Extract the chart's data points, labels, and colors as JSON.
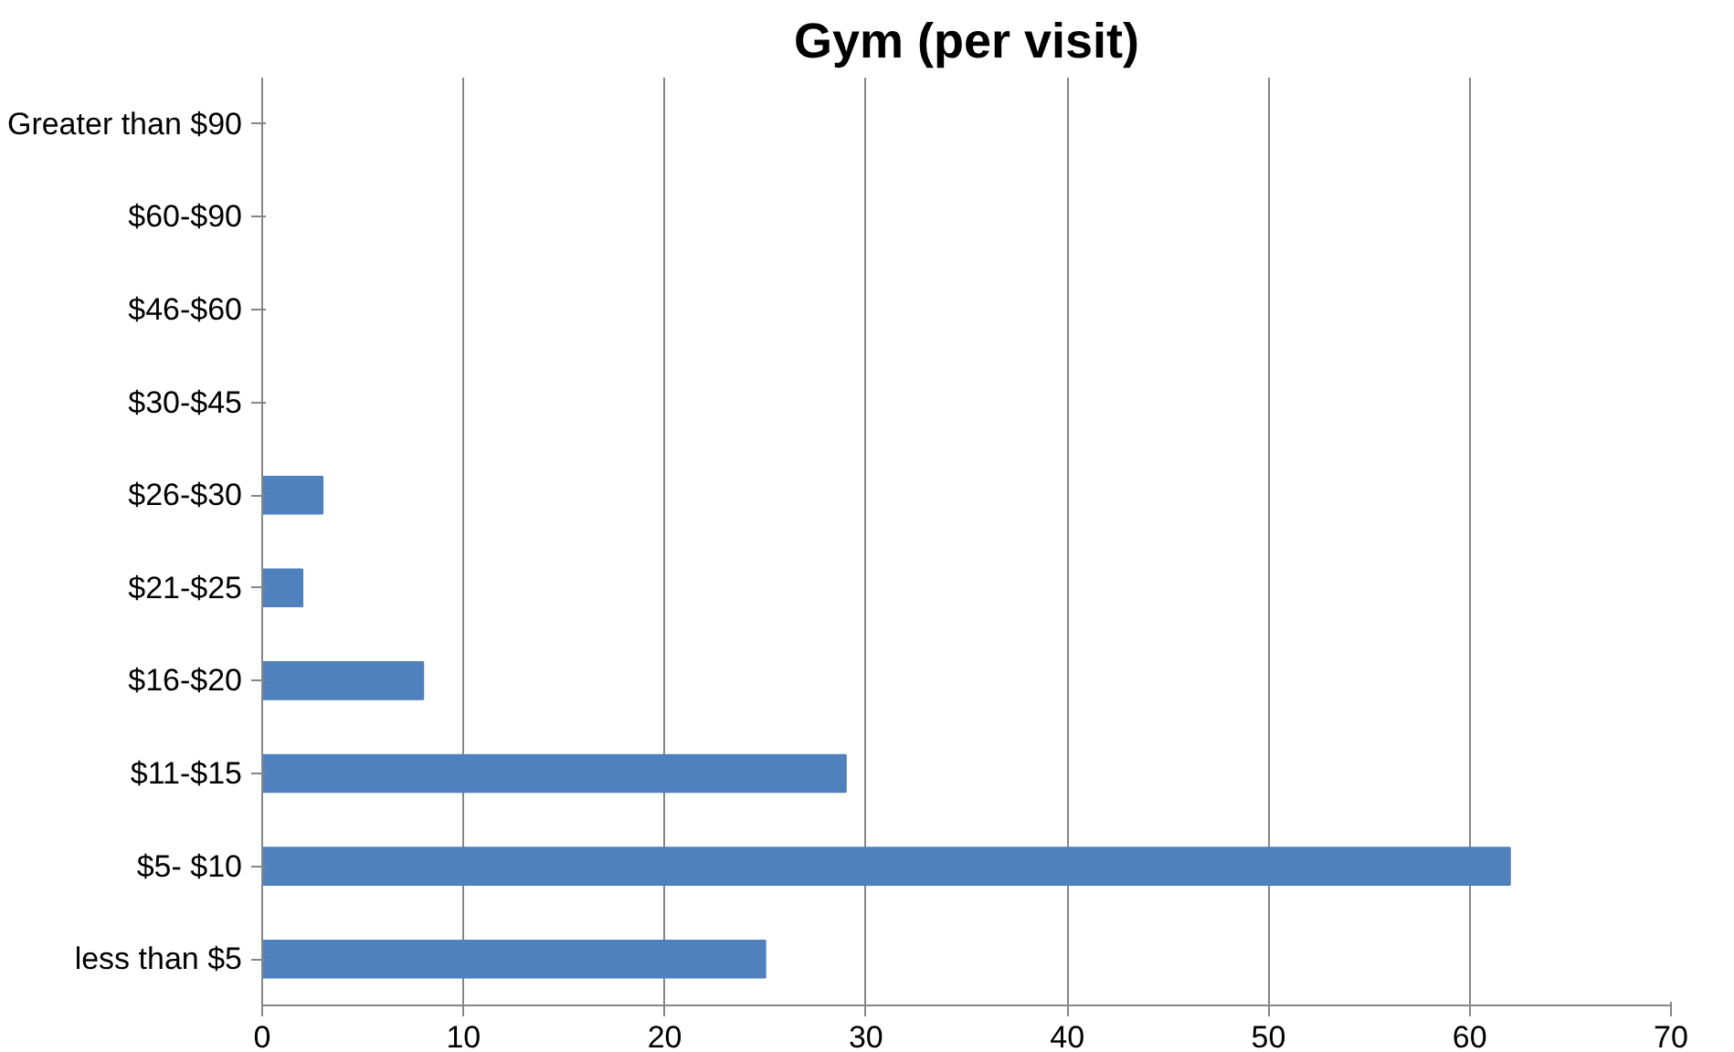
{
  "chart_data": {
    "type": "bar",
    "orientation": "horizontal",
    "title": "Gym (per visit)",
    "categories": [
      "Greater than $90",
      "$60-$90",
      "$46-$60",
      "$30-$45",
      "$26-$30",
      "$21-$25",
      "$16-$20",
      "$11-$15",
      "$5- $10",
      "less than $5"
    ],
    "values": [
      0,
      0,
      0,
      0,
      3,
      2,
      8,
      29,
      62,
      25
    ],
    "color": "#4f81bd",
    "xlim": [
      0,
      70
    ],
    "xticks": [
      0,
      10,
      20,
      30,
      40,
      50,
      60,
      70
    ],
    "grid": "x"
  }
}
